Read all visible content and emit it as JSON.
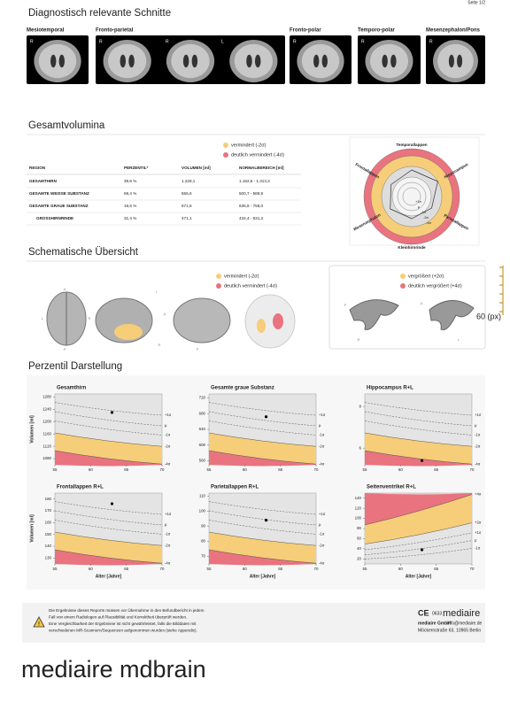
{
  "page_label": "Seite 1/2",
  "slices": {
    "title": "Diagnostisch relevante Schnitte",
    "views": [
      {
        "label": "Mesiotemporal",
        "marks": [
          "R"
        ]
      },
      {
        "label": "Fronto-parietal",
        "marks": [
          "R",
          "R",
          "L"
        ]
      },
      {
        "label": "Fronto-polar",
        "marks": [
          "R"
        ]
      },
      {
        "label": "Temporo-polar",
        "marks": [
          "R"
        ]
      },
      {
        "label": "Mesenzephalon/Pons",
        "marks": [
          "R"
        ]
      }
    ]
  },
  "volumes": {
    "title": "Gesamtvolumina",
    "legend": [
      "vermindert (-2σ)",
      "deutlich vermindert (-4σ)"
    ],
    "table": {
      "header": [
        "REGION",
        "PERZENTIL*",
        "VOLUMEN [ml]",
        "NORMALBEREICH [ml]"
      ],
      "rows": [
        [
          "GESAMTHIRN",
          "39,8 %",
          "1.228,1",
          "1.162,5 - 1.313,3"
        ],
        [
          "GESAMTE WEISSE SUBSTANZ",
          "69,4 %",
          "556,6",
          "500,7 - 589,9"
        ],
        [
          "GESAMTE GRAUE SUBSTANZ",
          "19,6 %",
          "671,5",
          "636,8 - 758,0"
        ],
        [
          "GROSSHIRNRINDE",
          "31,4 %",
          "471,1",
          "434,4 - 531,2"
        ]
      ]
    },
    "radar": {
      "regions": [
        "Temporallappen",
        "Hippocampus",
        "Parietallappen",
        "Kleinhirnrinde",
        "Mesenzephalon",
        "Frontallappen"
      ],
      "rings": [
        "+1σ",
        "μ",
        "-1σ",
        "-2σ",
        "-4σ"
      ]
    }
  },
  "schematic": {
    "title": "Schematische Übersicht",
    "legend_left": [
      "vermindert (-2σ)",
      "deutlich vermindert (-4σ)"
    ],
    "legend_right": [
      "vergrößert (+2σ)",
      "deutlich vergrößert (+4σ)"
    ],
    "letters": [
      "A",
      "L",
      "R",
      "P",
      "L",
      "A",
      "P",
      "R",
      "A",
      "P",
      "R",
      "L"
    ],
    "ruler": "60 (px)"
  },
  "percentiles": {
    "title": "Perzentil Darstellung",
    "y_label": "Volumen [ml]",
    "x_label": "Alter [Jahre]",
    "xlim": [
      55,
      70
    ],
    "xticks": [
      55,
      60,
      65,
      70
    ],
    "plots": [
      {
        "title": "Gesamthirn",
        "ylim": [
          1060,
          1290
        ],
        "yticks": [
          1080,
          1120,
          1160,
          1200,
          1240,
          1280
        ],
        "point": [
          63,
          1230
        ],
        "bands": [
          "+1σ",
          "μ",
          "-1σ",
          "-2σ",
          "-4σ"
        ]
      },
      {
        "title": "Gesamte graue Substanz",
        "ylim": [
          550,
          730
        ],
        "yticks": [
          560,
          600,
          640,
          680,
          720
        ],
        "point": [
          63,
          672
        ],
        "bands": [
          "+1σ",
          "μ",
          "-1σ",
          "-2σ",
          "-4σ"
        ]
      },
      {
        "title": "Hippocampus R+L",
        "ylim": [
          5.2,
          8.6
        ],
        "yticks": [
          6,
          8
        ],
        "point": [
          63,
          5.4
        ],
        "bands": [
          "+1σ",
          "μ",
          "-1σ",
          "-2σ",
          "-4σ"
        ]
      },
      {
        "title": "Frontallappen R+L",
        "ylim": [
          125,
          185
        ],
        "yticks": [
          130,
          140,
          150,
          160,
          170,
          180
        ],
        "point": [
          63,
          176
        ],
        "bands": [
          "+1σ",
          "μ",
          "-1σ",
          "-2σ",
          "-4σ"
        ]
      },
      {
        "title": "Parietallappen R+L",
        "ylim": [
          65,
          112
        ],
        "yticks": [
          70,
          80,
          90,
          100,
          110
        ],
        "point": [
          63,
          94
        ],
        "bands": [
          "+1σ",
          "μ",
          "-1σ",
          "-2σ",
          "-4σ"
        ]
      },
      {
        "title": "Seitenventrikel R+L",
        "ylim": [
          10,
          150
        ],
        "yticks": [
          20,
          40,
          60,
          80,
          100,
          120,
          140
        ],
        "point": [
          63,
          38
        ],
        "bands": [
          "+4σ",
          "+2σ",
          "+1σ",
          "μ",
          "-1σ"
        ]
      }
    ]
  },
  "footer": {
    "notice": [
      "Die Ergebnisse dieses Reports müssen vor Übernahme in den Befundbericht in jedem",
      "Fall von einem Radiologen auf Plausibilität und Korrektheit überprüft werden.",
      "Eine Vergleichbarkeit der Ergebnisse ist nicht gewährleistet, falls die Bilddaten mit",
      "verschiedenen MR-Scannern/Sequenzen aufgenommen wurden (siehe Appendix)."
    ],
    "ce_mark": "CE",
    "ce_number": "0633",
    "brand": "mediaire",
    "company": "mediaire GmbH",
    "email": "info@mediaire.de",
    "address": "Möckernstraße 63, 10965 Berlin"
  },
  "caption": "mediaire mdbrain"
}
